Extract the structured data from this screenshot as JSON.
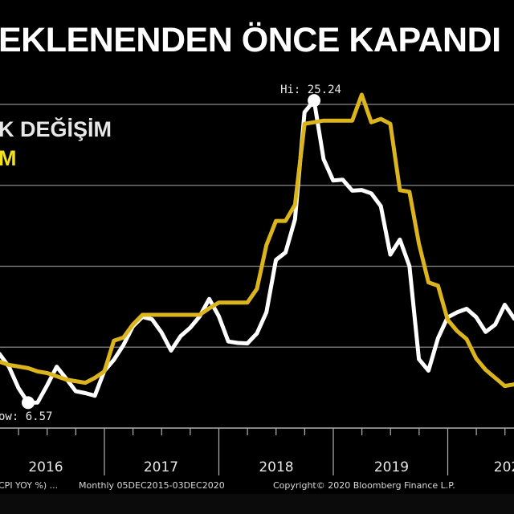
{
  "title": "EKLENENDEN ÖNCE KAPANDI",
  "footer": {
    "source": "CPI YOY %) ...",
    "range": "Monthly 05DEC2015-03DEC2020",
    "copyright": "Copyright© 2020 Bloomberg Finance L.P."
  },
  "colors": {
    "background": "#000000",
    "white_series": "#ffffff",
    "yellow_series": "#dcb41c",
    "grid": "#8a8a8a"
  },
  "chart_data": {
    "type": "line",
    "title": "EKLENENDEN ÖNCE KAPANDI",
    "legend": [
      {
        "text": "K DEĞİŞİM",
        "color": "#e8e8e8"
      },
      {
        "text": "M",
        "color": "#f2e21a"
      }
    ],
    "x_tick_labels": [
      "2016",
      "2017",
      "2018",
      "2019",
      "202"
    ],
    "y_gridlines": [
      5,
      10,
      15,
      20,
      25
    ],
    "ylim": [
      5,
      25.5
    ],
    "grid": true,
    "annotations": {
      "high": "Hi: 25.24",
      "low": "ow: 6.57",
      "high_value": 25.24,
      "low_value": 6.57
    },
    "series": [
      {
        "color": "#ffffff",
        "x": [
          "2015-12",
          "2016-01",
          "2016-02",
          "2016-03",
          "2016-04",
          "2016-05",
          "2016-06",
          "2016-07",
          "2016-08",
          "2016-09",
          "2016-10",
          "2016-11",
          "2016-12",
          "2017-01",
          "2017-02",
          "2017-03",
          "2017-04",
          "2017-05",
          "2017-06",
          "2017-07",
          "2017-08",
          "2017-09",
          "2017-10",
          "2017-11",
          "2017-12",
          "2018-01",
          "2018-02",
          "2018-03",
          "2018-04",
          "2018-05",
          "2018-06",
          "2018-07",
          "2018-08",
          "2018-09",
          "2018-10",
          "2018-11",
          "2018-12",
          "2019-01",
          "2019-02",
          "2019-03",
          "2019-04",
          "2019-05",
          "2019-06",
          "2019-07",
          "2019-08",
          "2019-09",
          "2019-10",
          "2019-11",
          "2019-12",
          "2020-01",
          "2020-02",
          "2020-03",
          "2020-04",
          "2020-05",
          "2020-06",
          "2020-07"
        ],
        "values": [
          8.81,
          9.58,
          8.78,
          7.46,
          6.57,
          6.58,
          7.64,
          8.79,
          8.05,
          7.28,
          7.16,
          7.0,
          8.53,
          9.22,
          10.13,
          11.29,
          11.87,
          11.72,
          10.9,
          9.79,
          10.68,
          11.2,
          11.9,
          12.98,
          11.92,
          10.35,
          10.26,
          10.23,
          10.85,
          12.15,
          15.39,
          15.85,
          17.9,
          24.52,
          25.24,
          21.62,
          20.3,
          20.35,
          19.67,
          19.71,
          19.5,
          18.71,
          15.72,
          16.65,
          15.01,
          9.26,
          8.55,
          10.56,
          11.84,
          12.15,
          12.37,
          11.86,
          10.94,
          11.39,
          12.62,
          11.76
        ]
      },
      {
        "color": "#dcb41c",
        "x": [
          "2016-01",
          "2016-02",
          "2016-03",
          "2016-04",
          "2016-05",
          "2016-06",
          "2016-07",
          "2016-08",
          "2016-09",
          "2016-10",
          "2016-11",
          "2016-12",
          "2017-01",
          "2017-02",
          "2017-03",
          "2017-04",
          "2017-05",
          "2017-06",
          "2017-07",
          "2017-08",
          "2017-09",
          "2017-10",
          "2017-11",
          "2017-12",
          "2018-01",
          "2018-02",
          "2018-03",
          "2018-04",
          "2018-05",
          "2018-06",
          "2018-07",
          "2018-08",
          "2018-09",
          "2018-10",
          "2018-11",
          "2018-12",
          "2019-01",
          "2019-02",
          "2019-03",
          "2019-04",
          "2019-05",
          "2019-06",
          "2019-07",
          "2019-08",
          "2019-09",
          "2019-10",
          "2019-11",
          "2019-12",
          "2020-01",
          "2020-02",
          "2020-03",
          "2020-04",
          "2020-05",
          "2020-06",
          "2020-07"
        ],
        "values": [
          9.1,
          8.9,
          8.8,
          8.7,
          8.5,
          8.4,
          8.2,
          8.0,
          7.9,
          7.8,
          8.1,
          8.5,
          10.4,
          10.6,
          11.4,
          12.0,
          12.0,
          12.0,
          12.0,
          12.0,
          12.0,
          12.0,
          12.4,
          12.75,
          12.75,
          12.75,
          12.75,
          13.6,
          16.3,
          17.8,
          17.8,
          18.8,
          23.8,
          23.9,
          24.0,
          24.0,
          24.0,
          24.0,
          25.6,
          23.9,
          24.1,
          23.8,
          19.7,
          19.6,
          16.4,
          14.0,
          13.8,
          11.7,
          11.0,
          10.5,
          9.3,
          8.6,
          8.1,
          7.6,
          7.7
        ]
      }
    ]
  }
}
